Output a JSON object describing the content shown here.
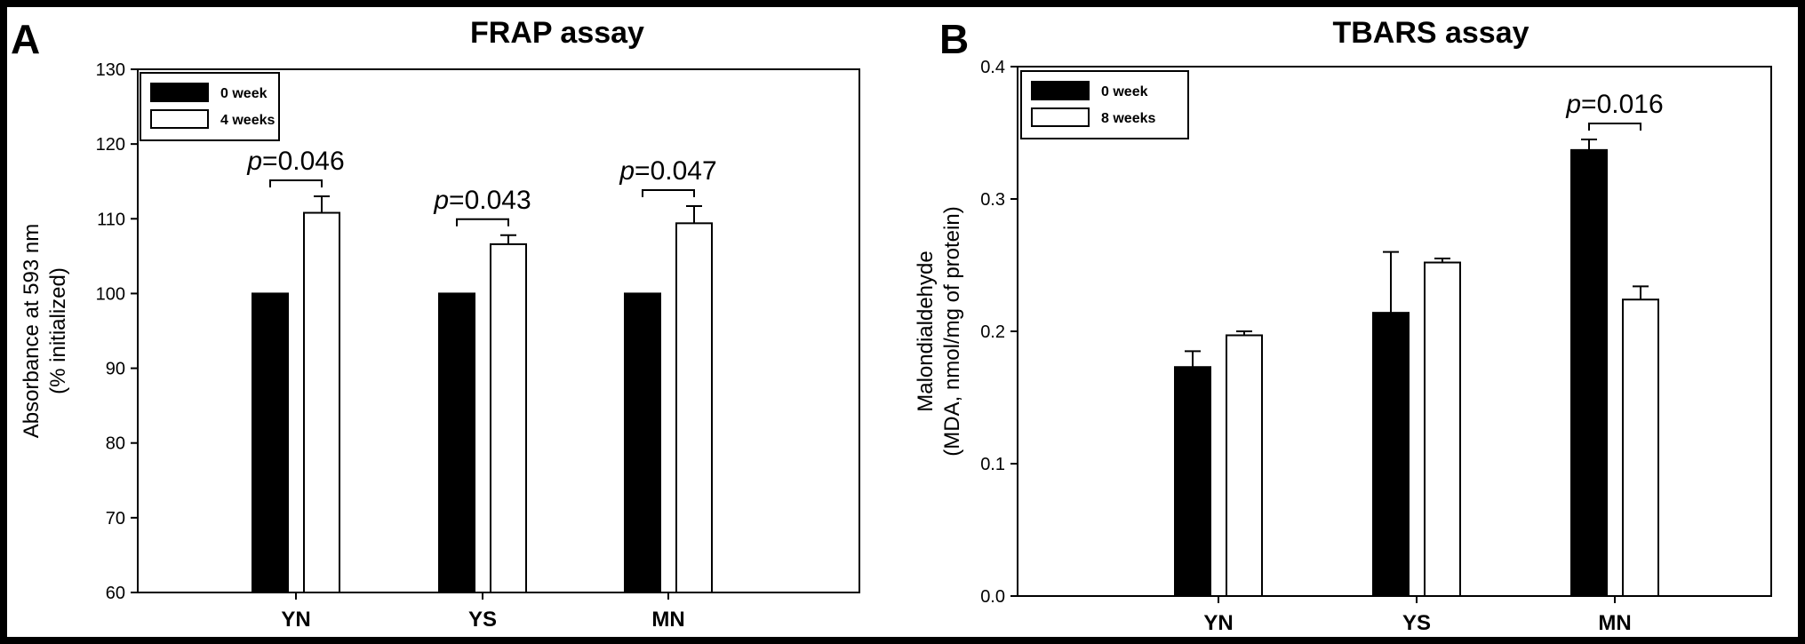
{
  "chart_data": [
    {
      "panel": "A",
      "type": "bar",
      "title": "FRAP assay",
      "xlabel": "",
      "ylabel": [
        "Absorbance at 593 nm",
        "(% initialized)"
      ],
      "ylim": [
        60,
        130
      ],
      "yticks": [
        60,
        70,
        80,
        90,
        100,
        110,
        120,
        130
      ],
      "categories": [
        "YN",
        "YS",
        "MN"
      ],
      "series": [
        {
          "name": "0 week",
          "color": "#000000",
          "values": [
            100,
            100,
            100
          ],
          "errors": [
            0,
            0,
            0
          ]
        },
        {
          "name": "4 weeks",
          "color": "#ffffff",
          "values": [
            110.8,
            106.6,
            109.4
          ],
          "errors": [
            2.2,
            1.2,
            2.3
          ]
        }
      ],
      "annotations": [
        {
          "category": "YN",
          "p_symbol": "p",
          "p_text": "=0.046"
        },
        {
          "category": "YS",
          "p_symbol": "p",
          "p_text": "=0.043"
        },
        {
          "category": "MN",
          "p_symbol": "p",
          "p_text": "=0.047"
        }
      ],
      "legend_position": "top-left",
      "grid": false
    },
    {
      "panel": "B",
      "type": "bar",
      "title": "TBARS assay",
      "xlabel": "",
      "ylabel": [
        "Malondialdehyde",
        "(MDA, nmol/mg of protein)"
      ],
      "ylim": [
        0.0,
        0.4
      ],
      "yticks": [
        "0.0",
        "0.1",
        "0.2",
        "0.3",
        "0.4"
      ],
      "categories": [
        "YN",
        "YS",
        "MN"
      ],
      "series": [
        {
          "name": "0 week",
          "color": "#000000",
          "values": [
            0.173,
            0.214,
            0.337
          ],
          "errors": [
            0.012,
            0.046,
            0.008
          ]
        },
        {
          "name": "8 weeks",
          "color": "#ffffff",
          "values": [
            0.197,
            0.252,
            0.224
          ],
          "errors": [
            0.003,
            0.003,
            0.01
          ]
        }
      ],
      "annotations": [
        {
          "category": "MN",
          "p_symbol": "p",
          "p_text": "=0.016"
        }
      ],
      "legend_position": "top-left",
      "grid": false
    }
  ]
}
